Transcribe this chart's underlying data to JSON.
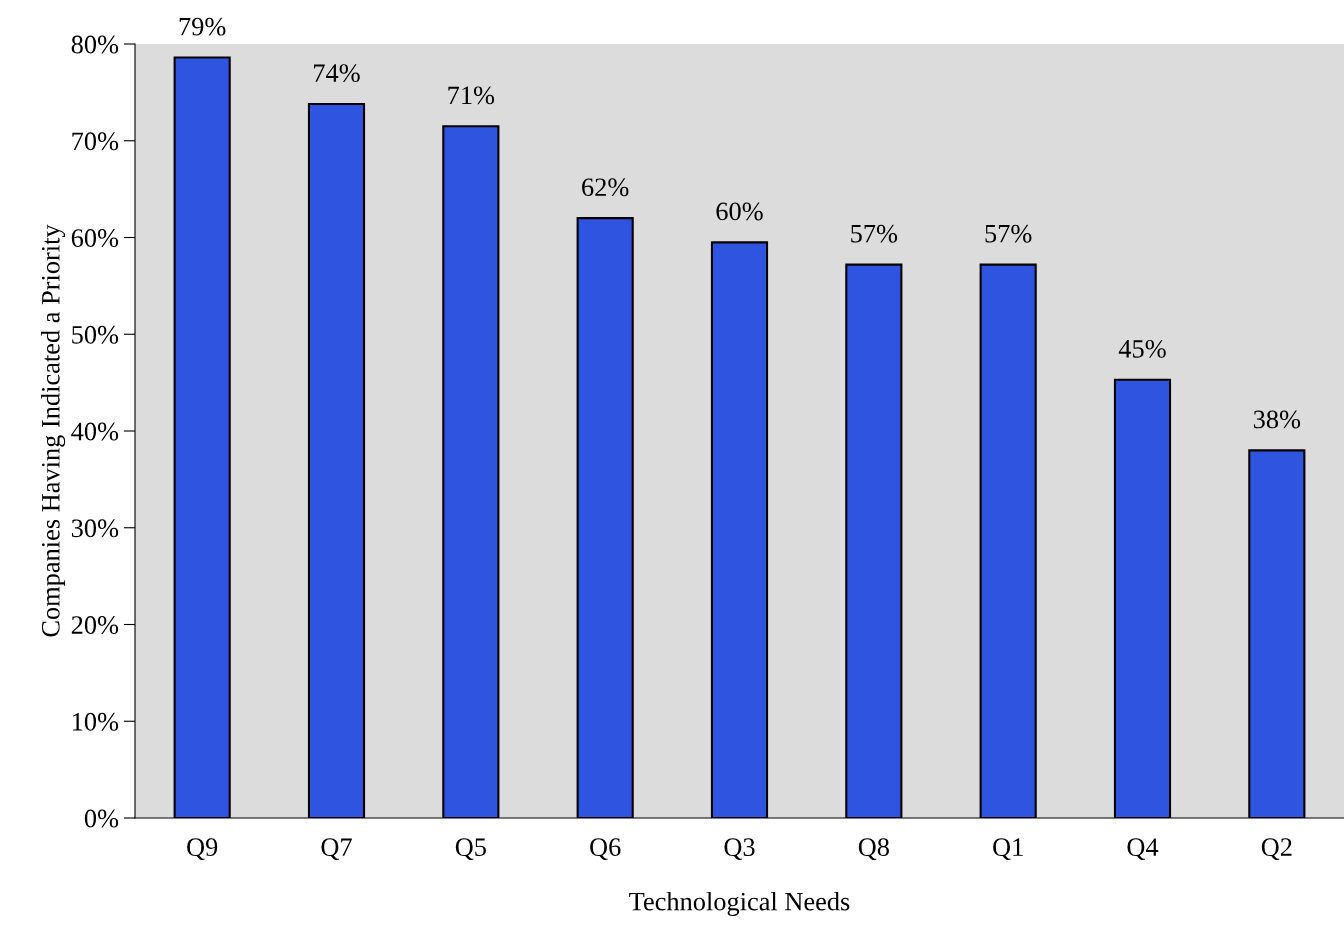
{
  "chart_data": {
    "type": "bar",
    "xlabel": "Technological Needs",
    "ylabel": "Companies Having Indicated a Priority",
    "categories": [
      "Q9",
      "Q7",
      "Q5",
      "Q6",
      "Q3",
      "Q8",
      "Q1",
      "Q4",
      "Q2"
    ],
    "values": [
      0.786,
      0.738,
      0.715,
      0.62,
      0.595,
      0.572,
      0.572,
      0.453,
      0.38
    ],
    "value_labels": [
      "79%",
      "74%",
      "71%",
      "62%",
      "60%",
      "57%",
      "57%",
      "45%",
      "38%"
    ],
    "color": "#2f54e0",
    "ylim": [
      0,
      0.8
    ],
    "yticks": [
      {
        "value": 0,
        "label": "0%"
      },
      {
        "value": 0.1,
        "label": "10%"
      },
      {
        "value": 0.2,
        "label": "20%"
      },
      {
        "value": 0.3,
        "label": "30%"
      },
      {
        "value": 0.4,
        "label": "40%"
      },
      {
        "value": 0.5,
        "label": "50%"
      },
      {
        "value": 0.6,
        "label": "60%"
      },
      {
        "value": 0.7,
        "label": "70%"
      },
      {
        "value": 0.8,
        "label": "80%"
      }
    ],
    "grid": false,
    "legend": false
  }
}
